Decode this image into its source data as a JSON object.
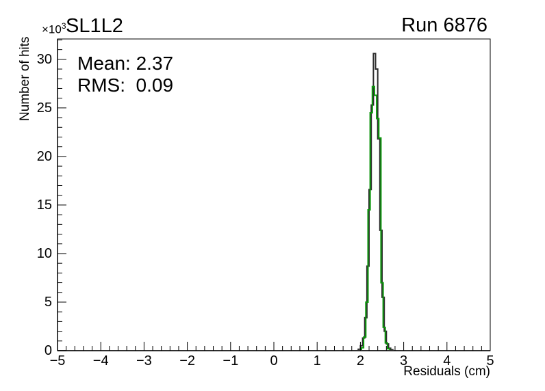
{
  "header": {
    "scale_prefix": "×10",
    "scale_exponent": "3",
    "title": "SL1L2",
    "run_label": "Run 6876"
  },
  "stats": {
    "mean": "Mean: 2.37",
    "rms": "RMS:  0.09"
  },
  "chart_data": {
    "type": "line",
    "style": "histogram-step-outline",
    "title": "SL1L2",
    "xlabel": "Residuals (cm)",
    "ylabel": "Number of hits",
    "xlim": [
      -5,
      5
    ],
    "ylim": [
      0,
      32100
    ],
    "y_scale_factor": "×10³",
    "grid": false,
    "legend": false,
    "x_tick_labels": [
      "−5",
      "−4",
      "−3",
      "−2",
      "−1",
      "0",
      "1",
      "2",
      "3",
      "4",
      "5"
    ],
    "y_tick_labels": [
      "0",
      "5",
      "10",
      "15",
      "20",
      "25",
      "30"
    ],
    "x_major_step": 1,
    "x_minor_step": 0.2,
    "y_major_step": 5000,
    "y_minor_step": 1000,
    "annotations": [
      "Run 6876",
      "Mean: 2.37",
      "RMS: 0.09"
    ],
    "axis_color": "#000000",
    "series": [
      {
        "name": "residuals-histogram-black",
        "color": "#2e2e2e",
        "line_width": 2,
        "bin_width": 0.05,
        "bin_start": 1.95,
        "values": [
          150,
          500,
          1300,
          3400,
          8700,
          16600,
          25300,
          30600,
          29000,
          21800,
          12400,
          5500,
          2000,
          700,
          250,
          100
        ]
      },
      {
        "name": "residuals-histogram-green",
        "color": "#0a960a",
        "line_width": 2,
        "bin_width": 0.05,
        "bin_start": 2.025,
        "values": [
          300,
          1400,
          5000,
          14500,
          24500,
          27200,
          26300,
          23900,
          21900,
          7000,
          2400,
          800,
          200
        ]
      }
    ]
  }
}
